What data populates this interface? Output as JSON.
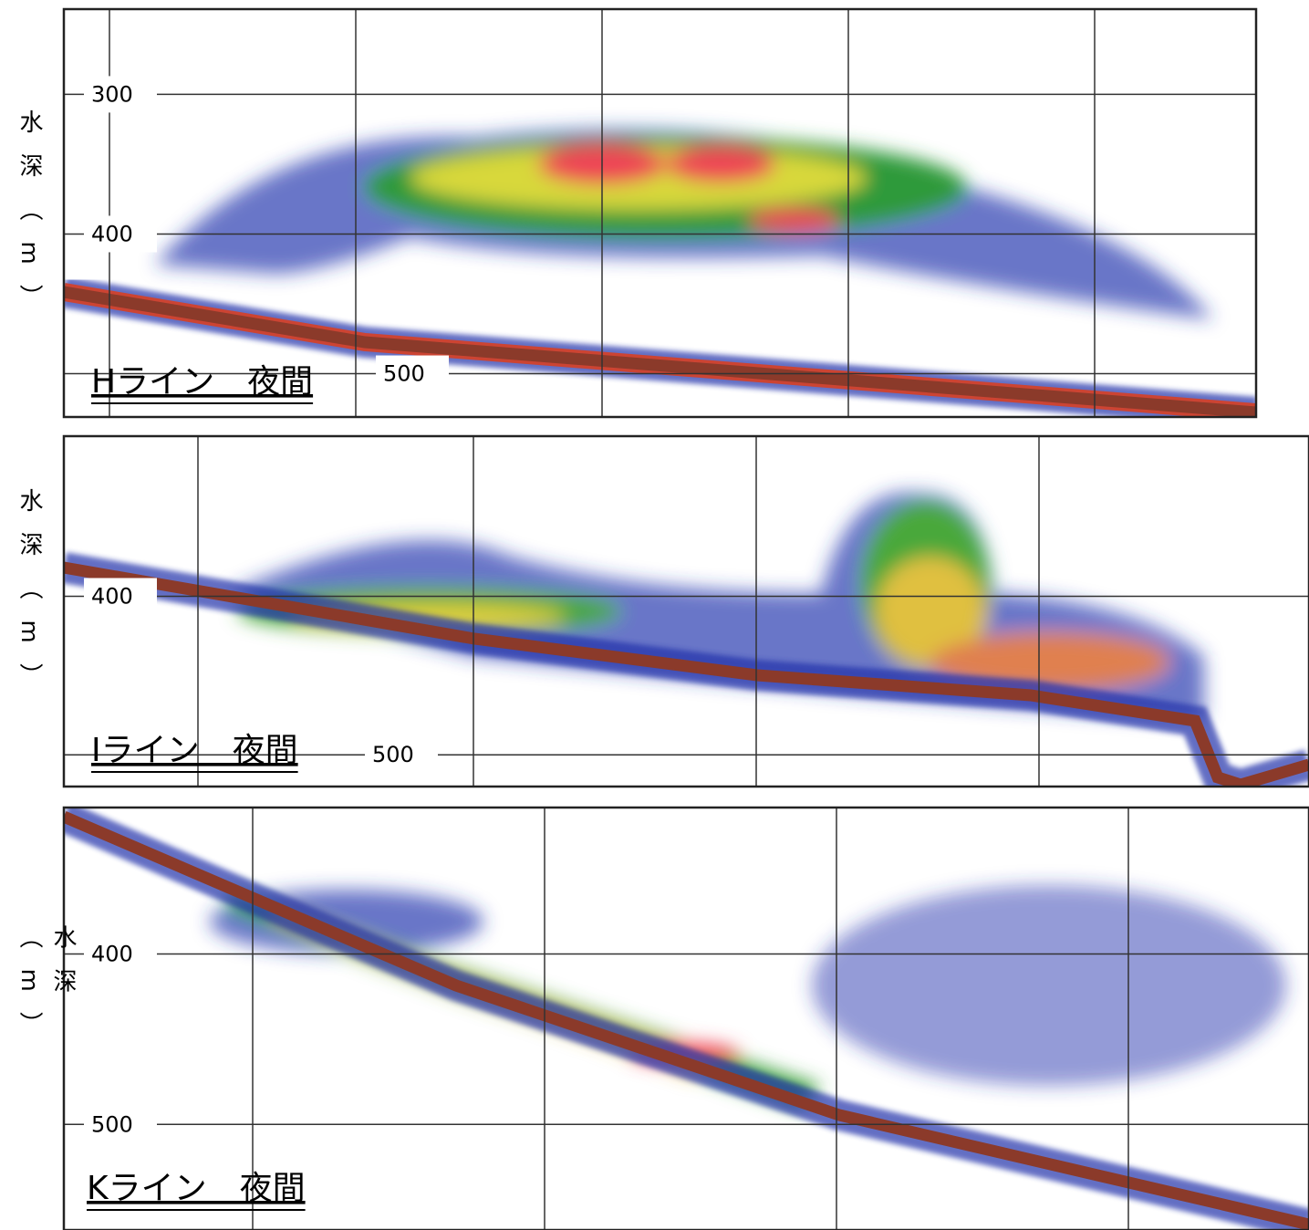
{
  "chart_data": [
    {
      "type": "echogram",
      "title": "Hライン　夜間",
      "ylabel": "水深（m）",
      "ylim": [
        531,
        239
      ],
      "yticks": [
        300,
        400,
        500
      ],
      "grid": true
    },
    {
      "type": "echogram",
      "title": "Iライン　夜間",
      "ylabel": "水深（m）",
      "ylim": [
        520,
        299
      ],
      "yticks": [
        400,
        500
      ],
      "grid": true
    },
    {
      "type": "echogram",
      "title": "Kライン　夜間",
      "ylabel": "水深（m）",
      "ylim": [
        562,
        314
      ],
      "yticks": [
        400,
        500
      ],
      "grid": true
    }
  ]
}
